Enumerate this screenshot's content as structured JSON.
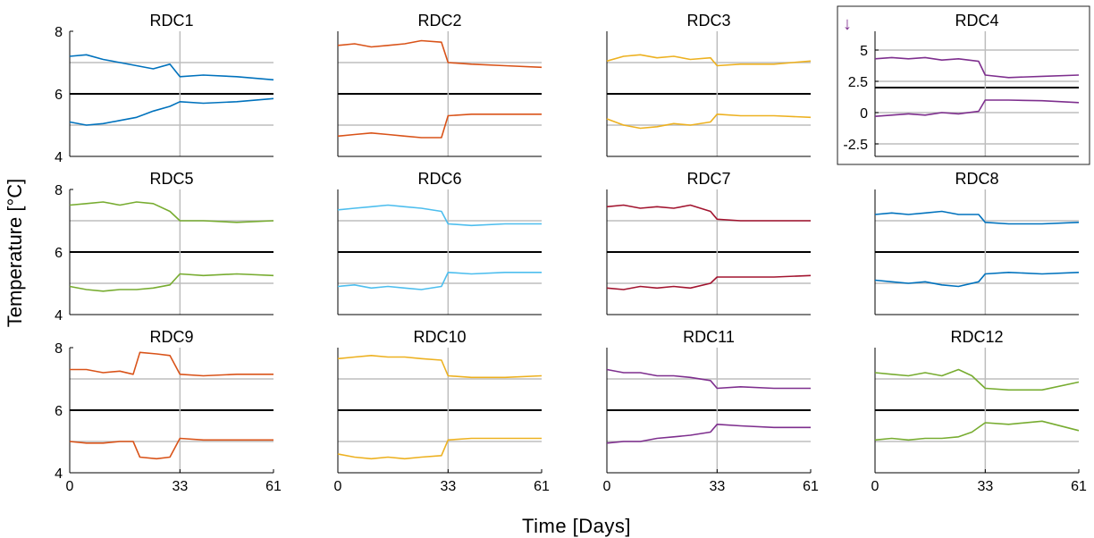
{
  "figure": {
    "ylabel": "Temperature [°C]",
    "xlabel": "Time [Days]"
  },
  "chart_data": [
    {
      "type": "line",
      "title": "RDC1",
      "color": "#0072BD",
      "x_ticks": [
        0,
        33,
        61
      ],
      "xlim": [
        0,
        61
      ],
      "ylim": [
        4,
        8
      ],
      "y_ticks": [
        4,
        6,
        8
      ],
      "series": [
        {
          "x": [
            0,
            5,
            10,
            15,
            20,
            25,
            30,
            33,
            40,
            50,
            61
          ],
          "values": [
            7.2,
            7.25,
            7.1,
            7.0,
            6.9,
            6.8,
            6.95,
            6.55,
            6.6,
            6.55,
            6.45
          ]
        },
        {
          "x": [
            0,
            5,
            10,
            15,
            20,
            25,
            30,
            33,
            40,
            50,
            61
          ],
          "values": [
            5.1,
            5.0,
            5.05,
            5.15,
            5.25,
            5.45,
            5.6,
            5.75,
            5.7,
            5.75,
            5.85
          ]
        }
      ]
    },
    {
      "type": "line",
      "title": "RDC2",
      "color": "#D95319",
      "x_ticks": [
        0,
        33,
        61
      ],
      "xlim": [
        0,
        61
      ],
      "ylim": [
        4,
        8
      ],
      "y_ticks": [
        4,
        6,
        8
      ],
      "series": [
        {
          "x": [
            0,
            5,
            10,
            15,
            20,
            25,
            31,
            33,
            40,
            50,
            61
          ],
          "values": [
            7.55,
            7.6,
            7.5,
            7.55,
            7.6,
            7.7,
            7.65,
            7.0,
            6.95,
            6.9,
            6.85
          ]
        },
        {
          "x": [
            0,
            5,
            10,
            15,
            20,
            25,
            31,
            33,
            40,
            50,
            61
          ],
          "values": [
            4.65,
            4.7,
            4.75,
            4.7,
            4.65,
            4.6,
            4.6,
            5.3,
            5.35,
            5.35,
            5.35
          ]
        }
      ]
    },
    {
      "type": "line",
      "title": "RDC3",
      "color": "#EDB120",
      "x_ticks": [
        0,
        33,
        61
      ],
      "xlim": [
        0,
        61
      ],
      "ylim": [
        4,
        8
      ],
      "y_ticks": [
        4,
        6,
        8
      ],
      "series": [
        {
          "x": [
            0,
            5,
            10,
            15,
            20,
            25,
            31,
            33,
            40,
            50,
            61
          ],
          "values": [
            7.05,
            7.2,
            7.25,
            7.15,
            7.2,
            7.1,
            7.15,
            6.9,
            6.95,
            6.95,
            7.05
          ]
        },
        {
          "x": [
            0,
            5,
            10,
            15,
            20,
            25,
            31,
            33,
            40,
            50,
            61
          ],
          "values": [
            5.2,
            5.0,
            4.9,
            4.95,
            5.05,
            5.0,
            5.1,
            5.35,
            5.3,
            5.3,
            5.25
          ]
        }
      ]
    },
    {
      "type": "line",
      "title": "RDC4",
      "color": "#7E2F8E",
      "x_ticks": [
        0,
        33,
        61
      ],
      "xlim": [
        0,
        61
      ],
      "ylim": [
        -3.5,
        6.5
      ],
      "y_ticks": [
        -2.5,
        0,
        2.5,
        5
      ],
      "series": [
        {
          "x": [
            0,
            5,
            10,
            15,
            20,
            25,
            31,
            33,
            40,
            50,
            61
          ],
          "values": [
            4.3,
            4.4,
            4.3,
            4.4,
            4.2,
            4.3,
            4.1,
            3.0,
            2.8,
            2.9,
            3.0
          ]
        },
        {
          "x": [
            0,
            5,
            10,
            15,
            20,
            25,
            31,
            33,
            40,
            50,
            61
          ],
          "values": [
            -0.3,
            -0.2,
            -0.1,
            -0.2,
            0.0,
            -0.1,
            0.1,
            1.0,
            1.0,
            0.95,
            0.8
          ]
        }
      ]
    },
    {
      "type": "line",
      "title": "RDC5",
      "color": "#77AC30",
      "x_ticks": [
        0,
        33,
        61
      ],
      "xlim": [
        0,
        61
      ],
      "ylim": [
        4,
        8
      ],
      "y_ticks": [
        4,
        6,
        8
      ],
      "series": [
        {
          "x": [
            0,
            5,
            10,
            15,
            20,
            25,
            30,
            33,
            40,
            50,
            61
          ],
          "values": [
            7.5,
            7.55,
            7.6,
            7.5,
            7.6,
            7.55,
            7.3,
            7.0,
            7.0,
            6.95,
            7.0
          ]
        },
        {
          "x": [
            0,
            5,
            10,
            15,
            20,
            25,
            30,
            33,
            40,
            50,
            61
          ],
          "values": [
            4.9,
            4.8,
            4.75,
            4.8,
            4.8,
            4.85,
            4.95,
            5.3,
            5.25,
            5.3,
            5.25
          ]
        }
      ]
    },
    {
      "type": "line",
      "title": "RDC6",
      "color": "#4DBEEE",
      "x_ticks": [
        0,
        33,
        61
      ],
      "xlim": [
        0,
        61
      ],
      "ylim": [
        4,
        8
      ],
      "y_ticks": [
        4,
        6,
        8
      ],
      "series": [
        {
          "x": [
            0,
            5,
            10,
            15,
            20,
            25,
            31,
            33,
            40,
            50,
            61
          ],
          "values": [
            7.35,
            7.4,
            7.45,
            7.5,
            7.45,
            7.4,
            7.3,
            6.9,
            6.85,
            6.9,
            6.9
          ]
        },
        {
          "x": [
            0,
            5,
            10,
            15,
            20,
            25,
            31,
            33,
            40,
            50,
            61
          ],
          "values": [
            4.9,
            4.95,
            4.85,
            4.9,
            4.85,
            4.8,
            4.9,
            5.35,
            5.3,
            5.35,
            5.35
          ]
        }
      ]
    },
    {
      "type": "line",
      "title": "RDC7",
      "color": "#A2142F",
      "x_ticks": [
        0,
        33,
        61
      ],
      "xlim": [
        0,
        61
      ],
      "ylim": [
        4,
        8
      ],
      "y_ticks": [
        4,
        6,
        8
      ],
      "series": [
        {
          "x": [
            0,
            5,
            10,
            15,
            20,
            25,
            31,
            33,
            40,
            50,
            61
          ],
          "values": [
            7.45,
            7.5,
            7.4,
            7.45,
            7.4,
            7.5,
            7.3,
            7.05,
            7.0,
            7.0,
            7.0
          ]
        },
        {
          "x": [
            0,
            5,
            10,
            15,
            20,
            25,
            31,
            33,
            40,
            50,
            61
          ],
          "values": [
            4.85,
            4.8,
            4.9,
            4.85,
            4.9,
            4.85,
            5.0,
            5.2,
            5.2,
            5.2,
            5.25
          ]
        }
      ]
    },
    {
      "type": "line",
      "title": "RDC8",
      "color": "#0072BD",
      "x_ticks": [
        0,
        33,
        61
      ],
      "xlim": [
        0,
        61
      ],
      "ylim": [
        4,
        8
      ],
      "y_ticks": [
        4,
        6,
        8
      ],
      "series": [
        {
          "x": [
            0,
            5,
            10,
            15,
            20,
            25,
            31,
            33,
            40,
            50,
            61
          ],
          "values": [
            7.2,
            7.25,
            7.2,
            7.25,
            7.3,
            7.2,
            7.2,
            6.95,
            6.9,
            6.9,
            6.95
          ]
        },
        {
          "x": [
            0,
            5,
            10,
            15,
            20,
            25,
            31,
            33,
            40,
            50,
            61
          ],
          "values": [
            5.1,
            5.05,
            5.0,
            5.05,
            4.95,
            4.9,
            5.05,
            5.3,
            5.35,
            5.3,
            5.35
          ]
        }
      ]
    },
    {
      "type": "line",
      "title": "RDC9",
      "color": "#D95319",
      "x_ticks": [
        0,
        33,
        61
      ],
      "xlim": [
        0,
        61
      ],
      "ylim": [
        4,
        8
      ],
      "y_ticks": [
        4,
        6,
        8
      ],
      "series": [
        {
          "x": [
            0,
            5,
            10,
            15,
            19,
            21,
            26,
            30,
            33,
            40,
            50,
            61
          ],
          "values": [
            7.3,
            7.3,
            7.2,
            7.25,
            7.15,
            7.85,
            7.8,
            7.75,
            7.15,
            7.1,
            7.15,
            7.15
          ]
        },
        {
          "x": [
            0,
            5,
            10,
            15,
            19,
            21,
            26,
            30,
            33,
            40,
            50,
            61
          ],
          "values": [
            5.0,
            4.95,
            4.95,
            5.0,
            5.0,
            4.5,
            4.45,
            4.5,
            5.1,
            5.05,
            5.05,
            5.05
          ]
        }
      ]
    },
    {
      "type": "line",
      "title": "RDC10",
      "color": "#EDB120",
      "x_ticks": [
        0,
        33,
        61
      ],
      "xlim": [
        0,
        61
      ],
      "ylim": [
        4,
        8
      ],
      "y_ticks": [
        4,
        6,
        8
      ],
      "series": [
        {
          "x": [
            0,
            5,
            10,
            15,
            20,
            25,
            31,
            33,
            40,
            50,
            61
          ],
          "values": [
            7.65,
            7.7,
            7.75,
            7.7,
            7.7,
            7.65,
            7.6,
            7.1,
            7.05,
            7.05,
            7.1
          ]
        },
        {
          "x": [
            0,
            5,
            10,
            15,
            20,
            25,
            31,
            33,
            40,
            50,
            61
          ],
          "values": [
            4.6,
            4.5,
            4.45,
            4.5,
            4.45,
            4.5,
            4.55,
            5.05,
            5.1,
            5.1,
            5.1
          ]
        }
      ]
    },
    {
      "type": "line",
      "title": "RDC11",
      "color": "#7E2F8E",
      "x_ticks": [
        0,
        33,
        61
      ],
      "xlim": [
        0,
        61
      ],
      "ylim": [
        4,
        8
      ],
      "y_ticks": [
        4,
        6,
        8
      ],
      "series": [
        {
          "x": [
            0,
            5,
            10,
            15,
            20,
            25,
            31,
            33,
            40,
            50,
            61
          ],
          "values": [
            7.3,
            7.2,
            7.2,
            7.1,
            7.1,
            7.05,
            6.95,
            6.7,
            6.75,
            6.7,
            6.7
          ]
        },
        {
          "x": [
            0,
            5,
            10,
            15,
            20,
            25,
            31,
            33,
            40,
            50,
            61
          ],
          "values": [
            4.95,
            5.0,
            5.0,
            5.1,
            5.15,
            5.2,
            5.3,
            5.55,
            5.5,
            5.45,
            5.45
          ]
        }
      ]
    },
    {
      "type": "line",
      "title": "RDC12",
      "color": "#77AC30",
      "x_ticks": [
        0,
        33,
        61
      ],
      "xlim": [
        0,
        61
      ],
      "ylim": [
        4,
        8
      ],
      "y_ticks": [
        4,
        6,
        8
      ],
      "series": [
        {
          "x": [
            0,
            5,
            10,
            15,
            20,
            25,
            29,
            33,
            40,
            50,
            61
          ],
          "values": [
            7.2,
            7.15,
            7.1,
            7.2,
            7.1,
            7.3,
            7.1,
            6.7,
            6.65,
            6.65,
            6.9
          ]
        },
        {
          "x": [
            0,
            5,
            10,
            15,
            20,
            25,
            29,
            33,
            40,
            50,
            61
          ],
          "values": [
            5.05,
            5.1,
            5.05,
            5.1,
            5.1,
            5.15,
            5.3,
            5.6,
            5.55,
            5.65,
            5.35
          ]
        }
      ]
    }
  ]
}
